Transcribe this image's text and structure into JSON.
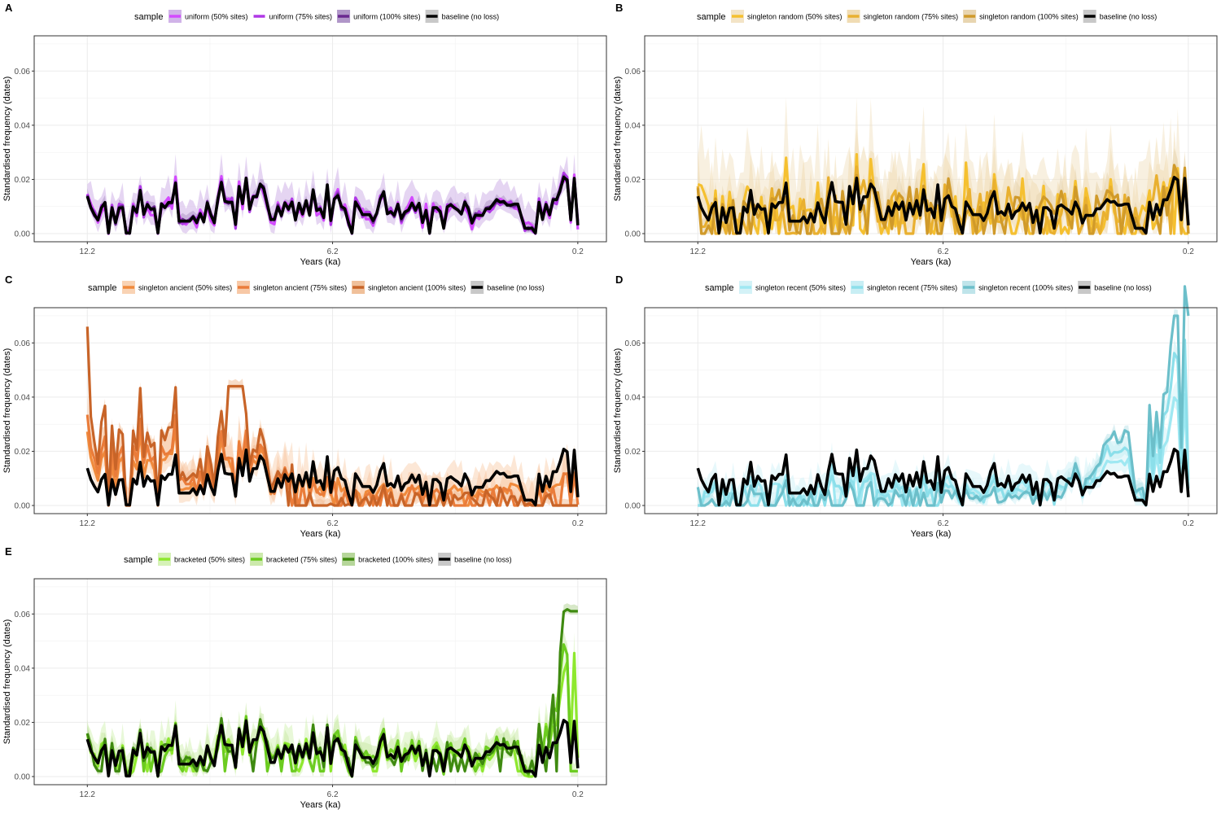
{
  "legend_title": "sample",
  "x_axis_label": "Years (ka)",
  "y_axis_label": "Standardised frequency (dates)",
  "x_ticks": [
    "12.2",
    "6.2",
    "0.2"
  ],
  "y_ticks": [
    "0.00",
    "0.02",
    "0.04",
    "0.06"
  ],
  "baseline_series": "baseline (no loss)",
  "baseline_values": [
    0.0138,
    0.0096,
    0.0071,
    0.005,
    0.0096,
    0.0115,
    0.0002,
    0.0096,
    0.0041,
    0.0094,
    0.0096,
    0.0002,
    0.0002,
    0.0098,
    0.0079,
    0.016,
    0.0071,
    0.0108,
    0.009,
    0.0092,
    0.0002,
    0.011,
    0.0096,
    0.0115,
    0.0115,
    0.0187,
    0.0046,
    0.0046,
    0.0046,
    0.0046,
    0.0062,
    0.004,
    0.0074,
    0.0043,
    0.0114,
    0.007,
    0.004,
    0.0128,
    0.0189,
    0.0119,
    0.0116,
    0.0116,
    0.0034,
    0.0174,
    0.011,
    0.0205,
    0.009,
    0.0136,
    0.0136,
    0.0183,
    0.0166,
    0.0108,
    0.0052,
    0.0052,
    0.0099,
    0.0067,
    0.0114,
    0.009,
    0.0117,
    0.005,
    0.0112,
    0.0072,
    0.0122,
    0.0068,
    0.0162,
    0.0085,
    0.0092,
    0.0059,
    0.018,
    0.0048,
    0.0128,
    0.014,
    0.01,
    0.0092,
    0.0041,
    0.0002,
    0.0117,
    0.0095,
    0.007,
    0.007,
    0.007,
    0.0048,
    0.0075,
    0.0127,
    0.0155,
    0.0073,
    0.0081,
    0.0068,
    0.0109,
    0.0056,
    0.008,
    0.0087,
    0.0113,
    0.0086,
    0.0112,
    0.0041,
    0.0086,
    0.0002,
    0.0096,
    0.0096,
    0.0082,
    0.002,
    0.0099,
    0.0106,
    0.0096,
    0.0087,
    0.0072,
    0.0117,
    0.009,
    0.0039,
    0.0068,
    0.0067,
    0.0067,
    0.0092,
    0.0092,
    0.0109,
    0.0126,
    0.0116,
    0.0119,
    0.0105,
    0.0105,
    0.0109,
    0.0109,
    0.0063,
    0.002,
    0.002,
    0.002,
    0.0002,
    0.0116,
    0.0052,
    0.0108,
    0.0069,
    0.0125,
    0.0125,
    0.0162,
    0.0208,
    0.0198,
    0.0051,
    0.0204,
    0.0031
  ],
  "chart_data": [
    {
      "panel": "A",
      "type": "line",
      "x_range": [
        12.8,
        0.2
      ],
      "ylim": [
        -0.003,
        0.073
      ],
      "x_ticks": [
        12.2,
        6.2,
        0.2
      ],
      "y_ticks": [
        0.0,
        0.02,
        0.04,
        0.06
      ],
      "grid": true,
      "legend": "top",
      "series": [
        {
          "name": "uniform (50% sites)",
          "color": "#d34aff",
          "fill": "#d0b3e8",
          "ribbon": 0.006
        },
        {
          "name": "uniform (75% sites)",
          "color": "#b038e6",
          "fill": "#ffffff",
          "ribbon": 0.004
        },
        {
          "name": "uniform (100% sites)",
          "color": "#6a2890",
          "fill": "#b096c8",
          "ribbon": 0.002
        },
        {
          "name": "baseline (no loss)",
          "color": "#000000",
          "fill": "#c8c8c8"
        }
      ]
    },
    {
      "panel": "B",
      "type": "line",
      "x_range": [
        12.8,
        0.2
      ],
      "ylim": [
        -0.003,
        0.073
      ],
      "x_ticks": [
        12.2,
        6.2,
        0.2
      ],
      "y_ticks": [
        0.0,
        0.02,
        0.04,
        0.06
      ],
      "grid": true,
      "legend": "top",
      "series": [
        {
          "name": "singleton random (50% sites)",
          "color": "#f5c030",
          "fill": "#f3e4c6",
          "ribbon": 0.016
        },
        {
          "name": "singleton random (75% sites)",
          "color": "#e9b030",
          "fill": "#f0dcb4",
          "ribbon": 0.011
        },
        {
          "name": "singleton random (100% sites)",
          "color": "#d09a2a",
          "fill": "#e8d5b0",
          "ribbon": 0.005
        },
        {
          "name": "baseline (no loss)",
          "color": "#000000",
          "fill": "#c8c8c8"
        }
      ]
    },
    {
      "panel": "C",
      "type": "line",
      "x_range": [
        12.8,
        0.2
      ],
      "ylim": [
        -0.003,
        0.073
      ],
      "x_ticks": [
        12.2,
        6.2,
        0.2
      ],
      "y_ticks": [
        0.0,
        0.02,
        0.04,
        0.06
      ],
      "grid": true,
      "legend": "top",
      "series": [
        {
          "name": "singleton ancient (50% sites)",
          "color": "#f08a3c",
          "fill": "#f9d3b4",
          "ribbon": 0.008
        },
        {
          "name": "singleton ancient (75% sites)",
          "color": "#ea7c3a",
          "fill": "#f7c8a6",
          "ribbon": 0.006
        },
        {
          "name": "singleton ancient (100% sites)",
          "color": "#c86428",
          "fill": "#f0c09a",
          "ribbon": 0.002
        },
        {
          "name": "baseline (no loss)",
          "color": "#000000",
          "fill": "#c8c8c8"
        }
      ]
    },
    {
      "panel": "D",
      "type": "line",
      "x_range": [
        12.8,
        0.2
      ],
      "ylim": [
        -0.003,
        0.073
      ],
      "x_ticks": [
        12.2,
        6.2,
        0.2
      ],
      "y_ticks": [
        0.0,
        0.02,
        0.04,
        0.06
      ],
      "grid": true,
      "legend": "top",
      "series": [
        {
          "name": "singleton recent (50% sites)",
          "color": "#9fe8f2",
          "fill": "#d4f2f7",
          "ribbon": 0.006
        },
        {
          "name": "singleton recent (75% sites)",
          "color": "#8cdfea",
          "fill": "#c8eef4",
          "ribbon": 0.004
        },
        {
          "name": "singleton recent (100% sites)",
          "color": "#6cbfca",
          "fill": "#bfe4ea",
          "ribbon": 0.002
        },
        {
          "name": "baseline (no loss)",
          "color": "#000000",
          "fill": "#c8c8c8"
        }
      ]
    },
    {
      "panel": "E",
      "type": "line",
      "x_range": [
        12.8,
        0.2
      ],
      "ylim": [
        -0.003,
        0.073
      ],
      "x_ticks": [
        12.2,
        6.2,
        0.2
      ],
      "y_ticks": [
        0.0,
        0.02,
        0.04,
        0.06
      ],
      "grid": true,
      "legend": "top",
      "series": [
        {
          "name": "bracketed (50% sites)",
          "color": "#8ee82e",
          "fill": "#d6f2b8",
          "ribbon": 0.006
        },
        {
          "name": "bracketed (75% sites)",
          "color": "#6ccc20",
          "fill": "#cce9ac",
          "ribbon": 0.004
        },
        {
          "name": "bracketed (100% sites)",
          "color": "#3f8a10",
          "fill": "#b6d69a",
          "ribbon": 0.002
        },
        {
          "name": "baseline (no loss)",
          "color": "#000000",
          "fill": "#c8c8c8"
        }
      ]
    }
  ]
}
